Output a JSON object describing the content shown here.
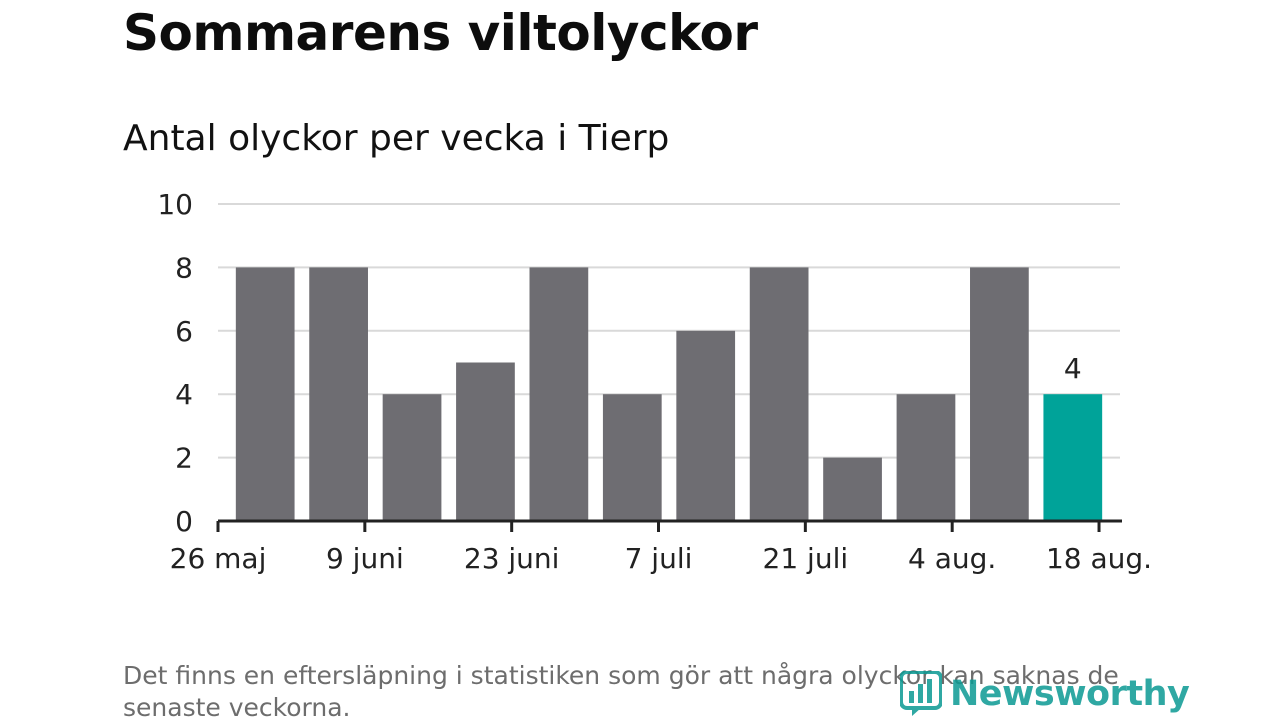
{
  "title": "Sommarens viltolyckor",
  "subtitle": "Antal olyckor per vecka i Tierp",
  "footnote": "Det finns en eftersläpning i statistiken som gör att några olyckor kan saknas de senaste veckorna.",
  "logo": {
    "text": "Newsworthy",
    "icon": "newsworthy-bar-chart-icon"
  },
  "colors": {
    "bar": "#6e6d72",
    "highlight": "#00a399",
    "grid": "#d9d9d9",
    "axis": "#222222",
    "text": "#222222"
  },
  "chart_data": {
    "type": "bar",
    "x": [
      "2019-05-27",
      "2019-06-03",
      "2019-06-10",
      "2019-06-17",
      "2019-06-24",
      "2019-07-01",
      "2019-07-08",
      "2019-07-15",
      "2019-07-22",
      "2019-07-29",
      "2019-08-05",
      "2019-08-12"
    ],
    "values": [
      8,
      8,
      4,
      5,
      8,
      4,
      6,
      8,
      2,
      4,
      8,
      4
    ],
    "highlight_index": 11,
    "data_labels": [
      {
        "index": 11,
        "text": "4"
      }
    ],
    "ylim": [
      0,
      10
    ],
    "yticks": [
      0,
      2,
      4,
      6,
      8,
      10
    ],
    "xticks": [
      {
        "date": "2019-05-26",
        "label": "26 maj"
      },
      {
        "date": "2019-06-09",
        "label": "9 juni"
      },
      {
        "date": "2019-06-23",
        "label": "23 juni"
      },
      {
        "date": "2019-07-07",
        "label": "7 juli"
      },
      {
        "date": "2019-07-21",
        "label": "21 juli"
      },
      {
        "date": "2019-08-04",
        "label": "4 aug."
      },
      {
        "date": "2019-08-18",
        "label": "18 aug."
      }
    ],
    "xlim": [
      "2019-05-26",
      "2019-08-20"
    ],
    "grid": true,
    "xlabel": "",
    "ylabel": ""
  }
}
